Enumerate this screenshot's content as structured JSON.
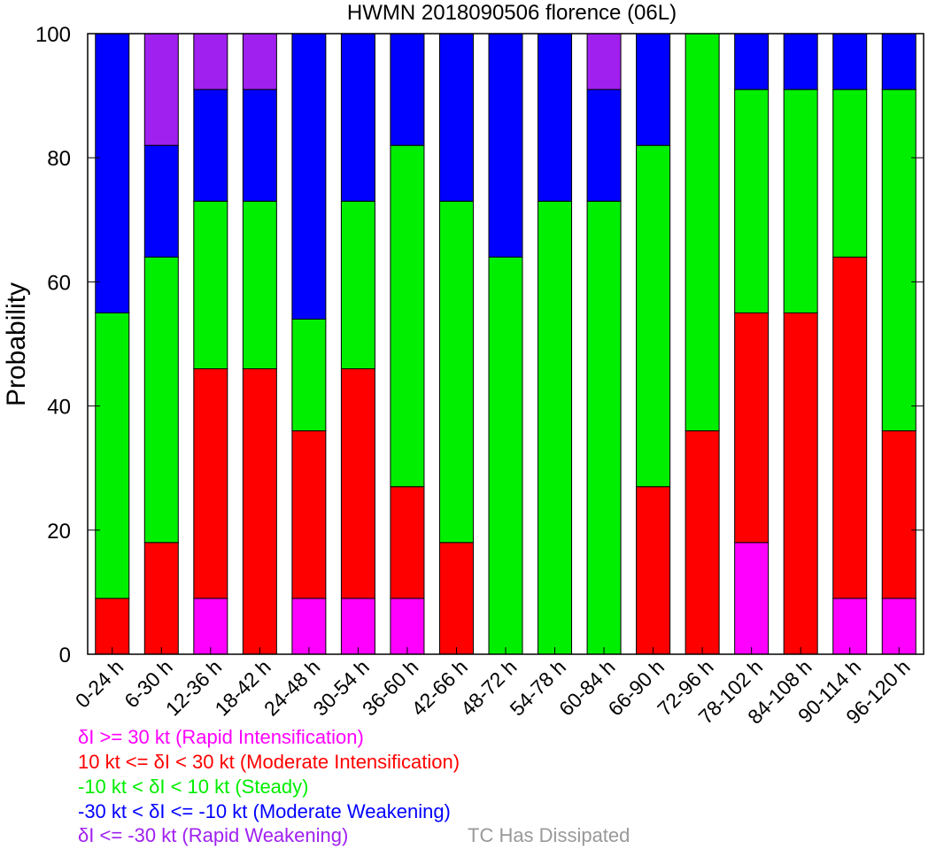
{
  "chart_data": {
    "type": "bar",
    "stacked": true,
    "title": "HWMN 2018090506 florence (06L)",
    "xlabel": "",
    "ylabel": "Probability",
    "ylim": [
      0,
      100
    ],
    "yticks": [
      0,
      20,
      40,
      60,
      80,
      100
    ],
    "grid": false,
    "categories": [
      "0-24 h",
      "6-30 h",
      "12-36 h",
      "18-42 h",
      "24-48 h",
      "30-54 h",
      "36-60 h",
      "42-66 h",
      "48-72 h",
      "54-78 h",
      "60-84 h",
      "66-90 h",
      "72-96 h",
      "78-102 h",
      "84-108 h",
      "90-114 h",
      "96-120 h"
    ],
    "series": [
      {
        "name": "δI >= 30 kt (Rapid Intensification)",
        "color": "#ff00ff",
        "values": [
          0,
          0,
          9,
          0,
          9,
          9,
          9,
          0,
          0,
          0,
          0,
          0,
          0,
          18,
          0,
          9,
          9
        ]
      },
      {
        "name": "10 kt <= δI < 30 kt (Moderate Intensification)",
        "color": "#ff0000",
        "values": [
          9,
          18,
          37,
          46,
          27,
          37,
          18,
          18,
          0,
          0,
          0,
          27,
          36,
          37,
          55,
          55,
          27
        ]
      },
      {
        "name": "-10 kt < δI < 10 kt (Steady)",
        "color": "#00ee00",
        "values": [
          46,
          46,
          27,
          27,
          18,
          27,
          55,
          55,
          64,
          73,
          73,
          55,
          64,
          36,
          36,
          27,
          55
        ]
      },
      {
        "name": "-30 kt < δI <= -10 kt (Moderate Weakening)",
        "color": "#0000ff",
        "values": [
          45,
          18,
          18,
          18,
          46,
          27,
          18,
          27,
          36,
          27,
          18,
          18,
          0,
          9,
          9,
          9,
          9
        ]
      },
      {
        "name": "δI <= -30 kt (Rapid Weakening)",
        "color": "#a020f0",
        "values": [
          0,
          18,
          9,
          9,
          0,
          0,
          0,
          0,
          0,
          0,
          9,
          0,
          0,
          0,
          0,
          0,
          0
        ]
      }
    ],
    "legend_placement": "bottom-left",
    "legend_extra": {
      "label": "TC Has Dissipated",
      "color": "#999999"
    }
  }
}
